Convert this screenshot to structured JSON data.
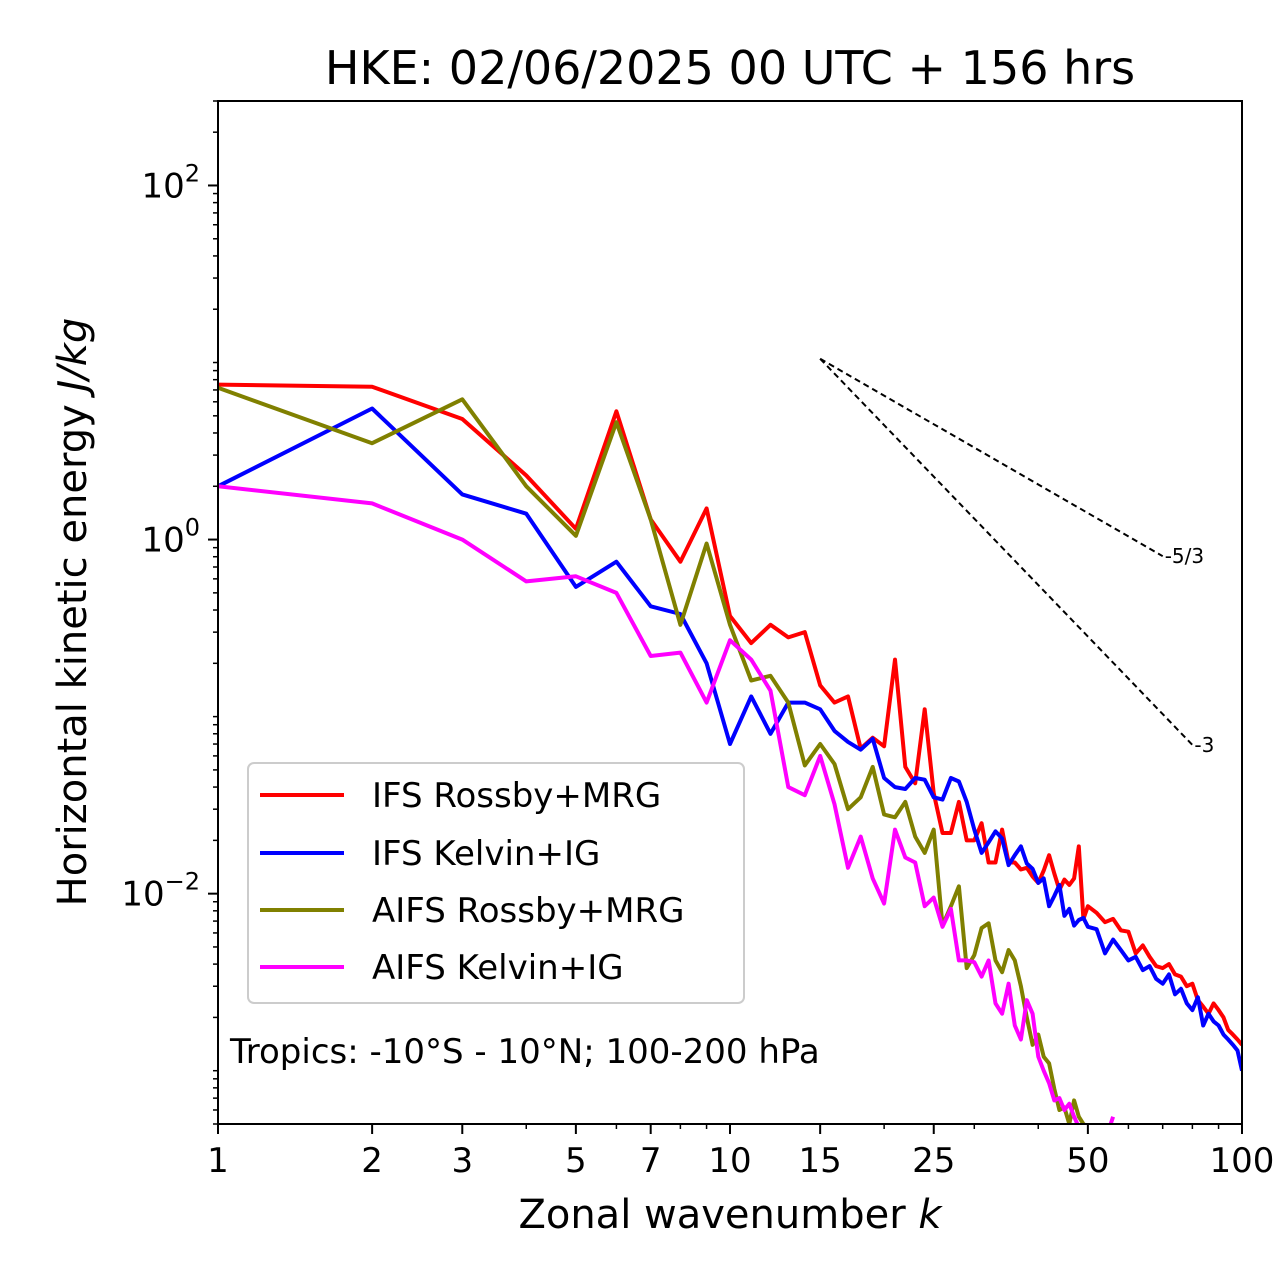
{
  "chart_data": {
    "type": "line",
    "title": "HKE: 02/06/2025 00 UTC + 156 hrs",
    "xlabel": "Zonal wavenumber",
    "xlabel_var": "k",
    "ylabel": "Horizontal kinetic energy",
    "ylabel_unit": "J/kg",
    "xscale": "log",
    "yscale": "log",
    "xlim": [
      1,
      100
    ],
    "ylim": [
      0.0005,
      300
    ],
    "xticks": [
      1,
      2,
      3,
      5,
      7,
      10,
      15,
      25,
      50,
      100
    ],
    "xtick_labels": [
      "1",
      "2",
      "3",
      "5",
      "7",
      "10",
      "15",
      "25",
      "50",
      "100"
    ],
    "yticks": [
      0.01,
      1,
      100
    ],
    "ytick_labels": [
      {
        "base": "10",
        "exp": "−2"
      },
      {
        "base": "10",
        "exp": "0"
      },
      {
        "base": "10",
        "exp": "2"
      }
    ],
    "grid": false,
    "legend_position": "lower-left",
    "annotation": "Tropics: -10°S - 10°N; 100-200 hPa",
    "reference_slopes": [
      {
        "label": "-5/3",
        "slope": -1.6667,
        "x": [
          15,
          70
        ],
        "y0": 10.5
      },
      {
        "label": "-3",
        "slope": -3,
        "x": [
          15,
          80
        ],
        "y0": 10.5
      }
    ],
    "series": [
      {
        "name": "IFS Rossby+MRG",
        "color": "#ff0000",
        "x": [
          1,
          2,
          3,
          4,
          5,
          6,
          7,
          8,
          9,
          10,
          11,
          12,
          13,
          14,
          15,
          16,
          17,
          18,
          19,
          20,
          21,
          22,
          23,
          24,
          25,
          26,
          27,
          28,
          29,
          30,
          31,
          32,
          33,
          34,
          35,
          36,
          37,
          38,
          39,
          40,
          41,
          42,
          43,
          44,
          45,
          46,
          47,
          48,
          49,
          50,
          52,
          54,
          56,
          58,
          60,
          62,
          64,
          66,
          68,
          70,
          72,
          74,
          76,
          78,
          80,
          82,
          84,
          86,
          88,
          90,
          92,
          94,
          96,
          98,
          100
        ],
        "values": [
          7.5,
          7.3,
          4.8,
          2.3,
          1.15,
          5.3,
          1.3,
          0.75,
          1.5,
          0.37,
          0.26,
          0.33,
          0.28,
          0.3,
          0.15,
          0.12,
          0.13,
          0.066,
          0.076,
          0.068,
          0.21,
          0.052,
          0.042,
          0.11,
          0.037,
          0.022,
          0.022,
          0.033,
          0.02,
          0.02,
          0.025,
          0.015,
          0.015,
          0.023,
          0.015,
          0.015,
          0.0137,
          0.014,
          0.0125,
          0.0115,
          0.0135,
          0.0165,
          0.013,
          0.0105,
          0.012,
          0.0112,
          0.0122,
          0.0185,
          0.0072,
          0.0085,
          0.0078,
          0.0069,
          0.0072,
          0.0062,
          0.0061,
          0.0046,
          0.0051,
          0.0044,
          0.0039,
          0.0038,
          0.004,
          0.0035,
          0.0034,
          0.003,
          0.0031,
          0.0025,
          0.0023,
          0.0021,
          0.0024,
          0.0022,
          0.002,
          0.0017,
          0.0016,
          0.0015,
          0.0014
        ]
      },
      {
        "name": "IFS Kelvin+IG",
        "color": "#0000ff",
        "x": [
          1,
          2,
          3,
          4,
          5,
          6,
          7,
          8,
          9,
          10,
          11,
          12,
          13,
          14,
          15,
          16,
          17,
          18,
          19,
          20,
          21,
          22,
          23,
          24,
          25,
          26,
          27,
          28,
          29,
          30,
          31,
          32,
          33,
          34,
          35,
          36,
          37,
          38,
          39,
          40,
          41,
          42,
          43,
          44,
          45,
          46,
          47,
          48,
          49,
          50,
          52,
          54,
          56,
          58,
          60,
          62,
          64,
          66,
          68,
          70,
          72,
          74,
          76,
          78,
          80,
          82,
          84,
          86,
          88,
          90,
          92,
          94,
          96,
          98,
          100
        ],
        "values": [
          2.0,
          5.5,
          1.8,
          1.4,
          0.54,
          0.75,
          0.42,
          0.38,
          0.2,
          0.07,
          0.13,
          0.08,
          0.12,
          0.12,
          0.11,
          0.083,
          0.072,
          0.065,
          0.075,
          0.045,
          0.04,
          0.039,
          0.045,
          0.044,
          0.035,
          0.034,
          0.045,
          0.043,
          0.033,
          0.023,
          0.017,
          0.0195,
          0.0225,
          0.0205,
          0.0145,
          0.0165,
          0.0185,
          0.0148,
          0.0138,
          0.0115,
          0.0122,
          0.0085,
          0.0097,
          0.0112,
          0.0075,
          0.0082,
          0.0066,
          0.0071,
          0.0073,
          0.0065,
          0.0063,
          0.0046,
          0.0055,
          0.0048,
          0.0042,
          0.0044,
          0.0037,
          0.0039,
          0.0033,
          0.0031,
          0.0035,
          0.0027,
          0.0029,
          0.0024,
          0.0022,
          0.0026,
          0.0018,
          0.0021,
          0.0019,
          0.0018,
          0.0016,
          0.0015,
          0.0014,
          0.0013,
          0.001
        ]
      },
      {
        "name": "AIFS Rossby+MRG",
        "color": "#808000",
        "x": [
          1,
          2,
          3,
          4,
          5,
          6,
          7,
          8,
          9,
          10,
          11,
          12,
          13,
          14,
          15,
          16,
          17,
          18,
          19,
          20,
          21,
          22,
          23,
          24,
          25,
          26,
          27,
          28,
          29,
          30,
          31,
          32,
          33,
          34,
          35,
          36,
          37,
          38,
          39,
          40,
          41,
          42,
          43,
          44,
          45,
          46,
          47,
          48,
          49,
          50
        ],
        "values": [
          7.2,
          3.5,
          6.2,
          2.0,
          1.05,
          4.6,
          1.3,
          0.33,
          0.95,
          0.33,
          0.16,
          0.17,
          0.12,
          0.053,
          0.07,
          0.054,
          0.03,
          0.035,
          0.052,
          0.028,
          0.027,
          0.033,
          0.021,
          0.017,
          0.023,
          0.0066,
          0.0085,
          0.011,
          0.0038,
          0.0045,
          0.0064,
          0.0068,
          0.0042,
          0.0036,
          0.0048,
          0.0042,
          0.003,
          0.002,
          0.0014,
          0.0016,
          0.0012,
          0.0011,
          0.00079,
          0.0006,
          0.00062,
          0.0005,
          0.00068,
          0.00055,
          0.0005,
          0.00048
        ]
      },
      {
        "name": "AIFS Kelvin+IG",
        "color": "#ff00ff",
        "x": [
          1,
          2,
          3,
          4,
          5,
          6,
          7,
          8,
          9,
          10,
          11,
          12,
          13,
          14,
          15,
          16,
          17,
          18,
          19,
          20,
          21,
          22,
          23,
          24,
          25,
          26,
          27,
          28,
          29,
          30,
          31,
          32,
          33,
          34,
          35,
          36,
          37,
          38,
          39,
          40,
          41,
          42,
          43,
          44,
          45,
          46,
          47,
          48,
          49,
          50,
          52,
          54,
          56
        ],
        "values": [
          2.0,
          1.6,
          1.0,
          0.58,
          0.62,
          0.5,
          0.22,
          0.23,
          0.12,
          0.27,
          0.21,
          0.14,
          0.04,
          0.036,
          0.06,
          0.032,
          0.014,
          0.021,
          0.0122,
          0.0088,
          0.023,
          0.016,
          0.015,
          0.0085,
          0.0095,
          0.0065,
          0.0082,
          0.0042,
          0.0042,
          0.0041,
          0.0034,
          0.0042,
          0.0024,
          0.0021,
          0.0031,
          0.0018,
          0.0015,
          0.0025,
          0.0021,
          0.0012,
          0.001,
          0.00085,
          0.00068,
          0.0007,
          0.0006,
          0.00065,
          0.00055,
          0.00048,
          0.0004,
          0.0004,
          0.0004,
          0.0004,
          0.00055
        ]
      }
    ]
  }
}
